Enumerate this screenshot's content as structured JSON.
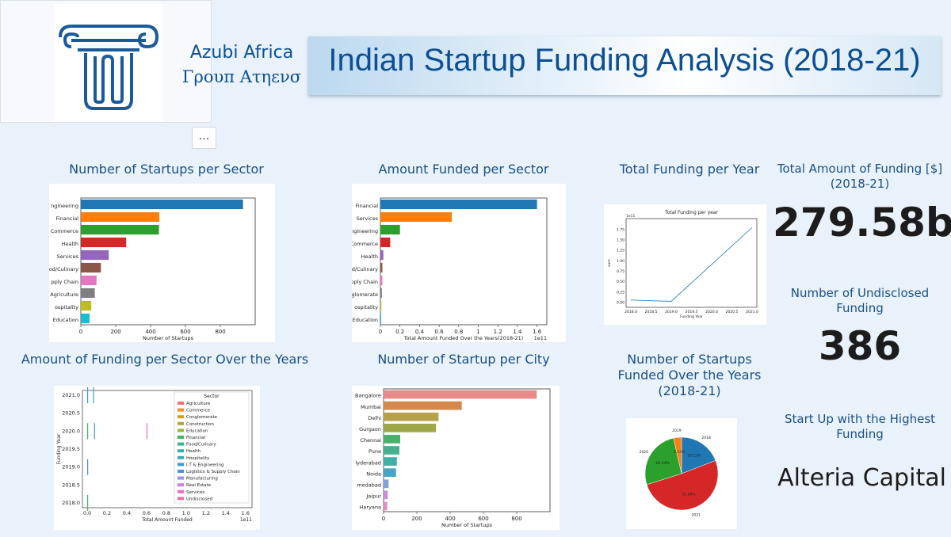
{
  "brand": {
    "line1": "Azubi Africa",
    "line2": "Γρουπ Ατηενσ"
  },
  "header": {
    "title": "Indian Startup Funding Analysis (2018-21)",
    "more": "..."
  },
  "visuals": {
    "startups_sector_title": "Number of Startups per Sector",
    "amount_sector_title": "Amount Funded per Sector",
    "total_year_title": "Total Funding per Year",
    "sector_years_title": "Amount of Funding per Sector Over the Years",
    "city_title": "Number of Startup per City",
    "pie_title": "Number of Startups Funded Over the Years (2018-21)"
  },
  "kpis": {
    "total_title": "Total Amount of Funding [$] (2018-21)",
    "total_value": "279.58bn",
    "undisclosed_title": "Number of Undisclosed Funding",
    "undisclosed_value": "386",
    "highest_title": "Start Up with the Highest Funding",
    "highest_value": "Alteria Capital"
  },
  "colors": [
    "#1f77b4",
    "#ff7f0e",
    "#2ca02c",
    "#d62728",
    "#9467bd",
    "#8c564b",
    "#e377c2",
    "#7f7f7f",
    "#bcbd22",
    "#17becf"
  ],
  "chart_data": [
    {
      "type": "bar",
      "orientation": "horizontal",
      "categories": [
        "I.T & Engineering",
        "Financial",
        "Commerce",
        "Health",
        "Services",
        "Food/Culinary",
        "Logistics & Supply Chain",
        "Agriculture",
        "Hospitality",
        "Education"
      ],
      "category_labels": [
        "ngineering",
        "Financial",
        "Commerce",
        "Health",
        "Services",
        "od/Culinary",
        "pply Chain",
        "Agriculture",
        "ospitality",
        "Education"
      ],
      "values": [
        930,
        450,
        448,
        260,
        160,
        115,
        90,
        80,
        60,
        50
      ],
      "xlabel": "Number of Startups",
      "xlim": [
        0,
        1000
      ],
      "xticks": [
        0,
        200,
        400,
        600,
        800
      ]
    },
    {
      "type": "bar",
      "orientation": "horizontal",
      "categories": [
        "Financial",
        "Services",
        "I.T & Engineering",
        "Commerce",
        "Health",
        "Food/Culinary",
        "Logistics & Supply Chain",
        "Conglomerate",
        "Hospitality",
        "Education"
      ],
      "category_labels": [
        "Financial",
        "Services",
        "ngineering",
        "Commerce",
        "Health",
        "od/Culinary",
        "pply Chain",
        "glomerate",
        "ospitality",
        "Education"
      ],
      "values": [
        1.6,
        0.73,
        0.2,
        0.1,
        0.03,
        0.02,
        0.02,
        0.015,
        0.01,
        0.008
      ],
      "xlabel": "Total Amount Funded Over the Years(2018-21)",
      "exponent": "1e11",
      "xlim": [
        0,
        1.7
      ],
      "xticks": [
        0.0,
        0.2,
        0.4,
        0.6,
        0.8,
        1.0,
        1.2,
        1.4,
        1.6
      ]
    },
    {
      "type": "line",
      "title": "Total Funding per year",
      "x": [
        2018,
        2019,
        2021
      ],
      "y": [
        0.06,
        0.03,
        1.8
      ],
      "xticks": [
        "2018.0",
        "2018.5",
        "2019.0",
        "2019.5",
        "2020.0",
        "2020.5",
        "2021.0"
      ],
      "yticks": [
        "0.00",
        "0.25",
        "0.50",
        "0.75",
        "1.00",
        "1.25",
        "1.50",
        "1.75"
      ],
      "exponent": "1e11",
      "xlabel": "Funding Year",
      "ylabel": "sum"
    },
    {
      "type": "bar",
      "orientation": "horizontal",
      "yticks": [
        "2021.0",
        "2020.5",
        "2020.0",
        "2019.5",
        "2019.0",
        "2018.5",
        "2018.0"
      ],
      "xticks": [
        "0.0",
        "0.2",
        "0.4",
        "0.6",
        "0.8",
        "1.0",
        "1.2",
        "1.4",
        "1.6"
      ],
      "exponent": "1e11",
      "xlabel": "Total Amount Funded",
      "ylabel": "Funding Year",
      "legend_title": "Sector",
      "legend_position": "right",
      "series": [
        {
          "name": "Agriculture",
          "color": "#ff6b6b"
        },
        {
          "name": "Commerce",
          "color": "#f28e2b"
        },
        {
          "name": "Conglomerate",
          "color": "#d4a017"
        },
        {
          "name": "Construction",
          "color": "#b5a33a"
        },
        {
          "name": "Education",
          "color": "#9bb33a"
        },
        {
          "name": "Financial",
          "color": "#44b35a"
        },
        {
          "name": "Food/Culinary",
          "color": "#3ab38a"
        },
        {
          "name": "Health",
          "color": "#36b3a6"
        },
        {
          "name": "Hospitality",
          "color": "#3aa8b8"
        },
        {
          "name": "I.T & Engineering",
          "color": "#3d9bd0"
        },
        {
          "name": "Logistics & Supply Chain",
          "color": "#4d8fe0"
        },
        {
          "name": "Manufacturing",
          "color": "#9c8fe6"
        },
        {
          "name": "Real Estate",
          "color": "#cf7fe0"
        },
        {
          "name": "Services",
          "color": "#e870c8"
        },
        {
          "name": "Undisclosed",
          "color": "#f06aa3"
        }
      ],
      "marks": [
        {
          "year": 2021,
          "value": 0.0,
          "color": "#3d9bd0"
        },
        {
          "year": 2021,
          "value": 0.06,
          "color": "#3d9bd0"
        },
        {
          "year": 2020,
          "value": 0.0,
          "color": "#44b35a"
        },
        {
          "year": 2020,
          "value": 0.07,
          "color": "#3d9bd0"
        },
        {
          "year": 2020,
          "value": 0.6,
          "color": "#e870c8"
        },
        {
          "year": 2019,
          "value": 0.0,
          "color": "#4d8fe0"
        },
        {
          "year": 2018,
          "value": 0.0,
          "color": "#44b35a"
        }
      ]
    },
    {
      "type": "bar",
      "orientation": "horizontal",
      "categories": [
        "Bangalore",
        "Mumbai",
        "Delhi",
        "Gurgaon",
        "Chennai",
        "Pune",
        "Hyderabad",
        "Noida",
        "Ahmedabad",
        "Jaipur",
        "Haryana"
      ],
      "category_labels": [
        "Bangalore",
        "Mumbai",
        "Delhi",
        "Gurgaon",
        "Chennai",
        "Pune",
        "lyderabad",
        "Noida",
        "medabad",
        "Jaipur",
        "Haryana"
      ],
      "values": [
        920,
        470,
        330,
        315,
        100,
        95,
        80,
        75,
        30,
        25,
        22
      ],
      "xlabel": "Number of Startups",
      "xlim": [
        0,
        1000
      ],
      "xticks": [
        0,
        200,
        400,
        600,
        800
      ],
      "colors": [
        "#e8898a",
        "#d6884a",
        "#b6a04a",
        "#9ea648",
        "#4caf6a",
        "#45b08f",
        "#3fb0a8",
        "#45a7c8",
        "#86a0dc",
        "#c492dc",
        "#e38ac6"
      ]
    },
    {
      "type": "pie",
      "categories": [
        "2018",
        "2019",
        "2020",
        "2021"
      ],
      "values": [
        19.13,
        3.53,
        26.34,
        51.0
      ],
      "labels": [
        "19.13%",
        "3.53%",
        "26.34%",
        "51.00%"
      ],
      "colors": [
        "#1f77b4",
        "#ff7f0e",
        "#2ca02c",
        "#d62728"
      ]
    }
  ]
}
